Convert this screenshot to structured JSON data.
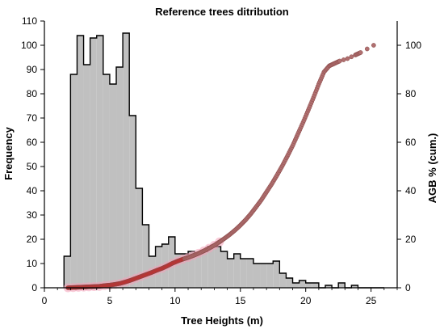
{
  "chart_data": {
    "type": "bar",
    "title": "Reference trees ditribution",
    "xlabel": "Tree Heights (m)",
    "ylabel": "Frequency",
    "y2label": "AGB % (cum.)",
    "xlim": [
      0,
      27
    ],
    "ylim": [
      0,
      110
    ],
    "y2lim": [
      0,
      110
    ],
    "xticks": [
      0,
      5,
      10,
      15,
      20,
      25
    ],
    "yticks": [
      0,
      10,
      20,
      30,
      40,
      50,
      60,
      70,
      80,
      90,
      100,
      110
    ],
    "y2ticks": [
      0,
      20,
      40,
      60,
      80,
      100
    ],
    "grid": false,
    "series": [
      {
        "kind": "histogram",
        "axis": "left",
        "bin_width": 0.5,
        "bin_start": [
          1.5,
          2.0,
          2.5,
          3.0,
          3.5,
          4.0,
          4.5,
          5.0,
          5.5,
          6.0,
          6.5,
          7.0,
          7.5,
          8.0,
          8.5,
          9.0,
          9.5,
          10.0,
          10.5,
          11.0,
          11.5,
          12.0,
          12.5,
          13.0,
          13.5,
          14.0,
          14.5,
          15.0,
          15.5,
          16.0,
          16.5,
          17.0,
          17.5,
          18.0,
          18.5,
          19.0,
          19.5,
          20.0,
          20.5,
          21.0,
          21.5,
          22.0,
          22.5,
          23.0,
          23.5,
          24.0,
          24.5,
          25.0,
          25.5
        ],
        "values": [
          13,
          88,
          104,
          92,
          103,
          104,
          88,
          84,
          91,
          105,
          71,
          41,
          26,
          13,
          17,
          18,
          21,
          14,
          14,
          15,
          14,
          15,
          17,
          17,
          15,
          12,
          14,
          12,
          12,
          10,
          10,
          10,
          11,
          6,
          4,
          2,
          3,
          2,
          2,
          0,
          1,
          0,
          2,
          0,
          1,
          0,
          0,
          0,
          0
        ],
        "fill": "#c0c0c0",
        "stroke": "#000000"
      },
      {
        "kind": "scatter",
        "axis": "right",
        "x": [
          1.8,
          2.2,
          2.6,
          3.0,
          3.4,
          3.8,
          4.2,
          4.6,
          5.0,
          5.4,
          5.8,
          6.2,
          6.6,
          7.0,
          7.4,
          7.8,
          8.2,
          8.6,
          9.0,
          9.4,
          9.8,
          10.2,
          10.6,
          11.0,
          11.4,
          11.8,
          12.2,
          12.6,
          13.0,
          13.4,
          13.8,
          14.2,
          14.6,
          15.0,
          15.4,
          15.8,
          16.2,
          16.6,
          17.0,
          17.4,
          17.8,
          18.2,
          18.6,
          19.0,
          19.4,
          19.8,
          20.2,
          20.6,
          21.0,
          21.4,
          21.8,
          22.2,
          22.6,
          23.2,
          23.8,
          24.2,
          25.2
        ],
        "y": [
          0.0,
          0.1,
          0.2,
          0.3,
          0.4,
          0.5,
          0.6,
          0.9,
          1.1,
          1.4,
          1.8,
          2.4,
          3.1,
          3.9,
          4.7,
          5.5,
          6.3,
          7.2,
          8.0,
          9.0,
          10.1,
          11.0,
          11.8,
          12.5,
          13.3,
          14.2,
          15.2,
          16.3,
          17.5,
          18.9,
          20.4,
          22.0,
          23.8,
          25.8,
          28.0,
          30.5,
          33.3,
          36.2,
          39.5,
          42.8,
          46.4,
          50.2,
          54.3,
          58.6,
          63.4,
          68.2,
          73.3,
          78.5,
          84.0,
          89.0,
          91.5,
          92.5,
          93.5,
          94.5,
          96.0,
          97.0,
          100.0
        ],
        "color": "#b07070",
        "edge": "#8b4a4a"
      }
    ]
  }
}
